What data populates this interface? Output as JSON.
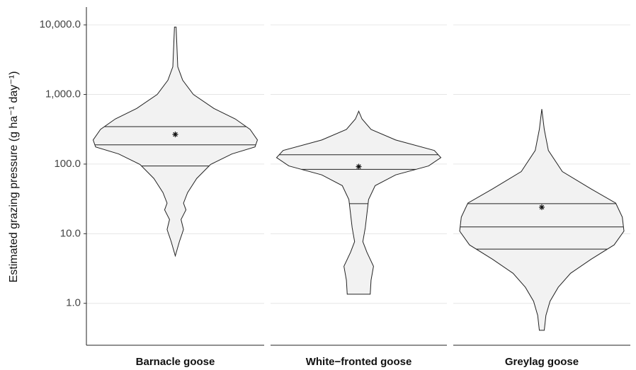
{
  "chart_data": {
    "type": "violin",
    "y_label": "Estimated grazing pressure (g ha⁻¹ day⁻¹)",
    "log_y": true,
    "grid": true,
    "fill": "#f2f2f2",
    "line_color": "#222222",
    "ylim": [
      0.25,
      18000
    ],
    "yticks": [
      {
        "value": 1,
        "label": "1.0"
      },
      {
        "value": 10,
        "label": "10.0"
      },
      {
        "value": 100,
        "label": "100.0"
      },
      {
        "value": 1000,
        "label": "1,000.0"
      },
      {
        "value": 10000,
        "label": "10,000.0"
      }
    ],
    "categories": [
      "Barnacle goose",
      "White−fronted goose",
      "Greylag goose"
    ],
    "series": [
      {
        "quantiles": [
          94,
          189,
          345
        ],
        "mean": 267,
        "density_y": [
          9300,
          2500,
          1600,
          1000,
          630,
          445,
          315,
          222,
          176,
          140,
          99,
          62,
          39,
          27.5,
          22,
          16,
          11.5,
          7.7,
          4.8
        ],
        "density_width": [
          0.01,
          0.03,
          0.09,
          0.22,
          0.47,
          0.73,
          0.91,
          1.0,
          0.97,
          0.69,
          0.43,
          0.26,
          0.15,
          0.1,
          0.13,
          0.07,
          0.1,
          0.05,
          0.0
        ]
      },
      {
        "quantiles": [
          27,
          84,
          136
        ],
        "mean": 92,
        "density_y": [
          575,
          445,
          315,
          222,
          157,
          124,
          94,
          70,
          49,
          31,
          19.5,
          12.2,
          7.7,
          5.4,
          3.4,
          2.15,
          1.35
        ],
        "density_width": [
          0.0,
          0.04,
          0.15,
          0.45,
          0.92,
          1.0,
          0.85,
          0.45,
          0.2,
          0.12,
          0.1,
          0.08,
          0.05,
          0.1,
          0.18,
          0.15,
          0.14
        ]
      },
      {
        "quantiles": [
          6,
          12.5,
          27
        ],
        "mean": 24,
        "density_y": [
          617,
          315,
          157,
          78,
          44,
          27.5,
          17.3,
          10.9,
          6.9,
          4.3,
          2.7,
          1.7,
          1.07,
          0.67,
          0.41
        ],
        "density_width": [
          0.0,
          0.03,
          0.08,
          0.25,
          0.6,
          0.9,
          0.98,
          1.0,
          0.88,
          0.6,
          0.35,
          0.2,
          0.1,
          0.05,
          0.03
        ]
      }
    ]
  }
}
